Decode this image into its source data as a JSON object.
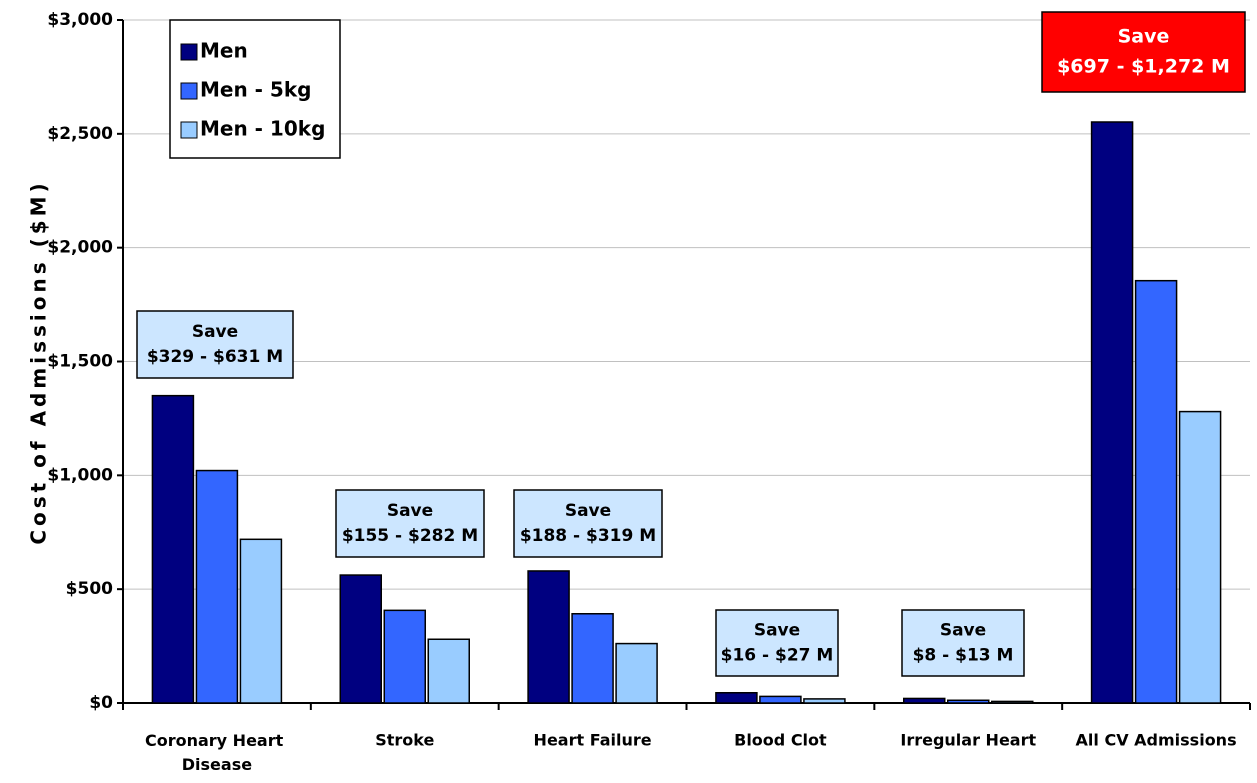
{
  "chart_data": {
    "type": "bar",
    "ylabel": "Cost of Admissions ($M)",
    "categories": [
      "Coronary Heart Disease",
      "Stroke",
      "Heart Failure",
      "Blood Clot",
      "Irregular Heart",
      "All CV Admissions"
    ],
    "series": [
      {
        "name": "Men",
        "color": "#000080",
        "values": [
          1350,
          562,
          580,
          45,
          20,
          2552
        ]
      },
      {
        "name": "Men - 5kg",
        "color": "#3366ff",
        "values": [
          1021,
          407,
          392,
          29,
          12,
          1855
        ]
      },
      {
        "name": "Men - 10kg",
        "color": "#99ccff",
        "values": [
          719,
          280,
          261,
          18,
          7,
          1280
        ]
      }
    ],
    "annotations": [
      [
        "Save",
        "$329 - $631 M"
      ],
      [
        "Save",
        "$155 - $282 M"
      ],
      [
        "Save",
        "$188 - $319 M"
      ],
      [
        "Save",
        "$16 - $27 M"
      ],
      [
        "Save",
        "$8 - $13 M"
      ],
      [
        "Save",
        "$697 - $1,272 M"
      ]
    ],
    "ylim": [
      0,
      3000
    ],
    "yticks": [
      {
        "value": 0,
        "label": "$0"
      },
      {
        "value": 500,
        "label": "$500"
      },
      {
        "value": 1000,
        "label": "$1,000"
      },
      {
        "value": 1500,
        "label": "$1,500"
      },
      {
        "value": 2000,
        "label": "$2,000"
      },
      {
        "value": 2500,
        "label": "$2,500"
      },
      {
        "value": 3000,
        "label": "$3,000"
      }
    ],
    "grid": true,
    "legend": "upper left"
  }
}
